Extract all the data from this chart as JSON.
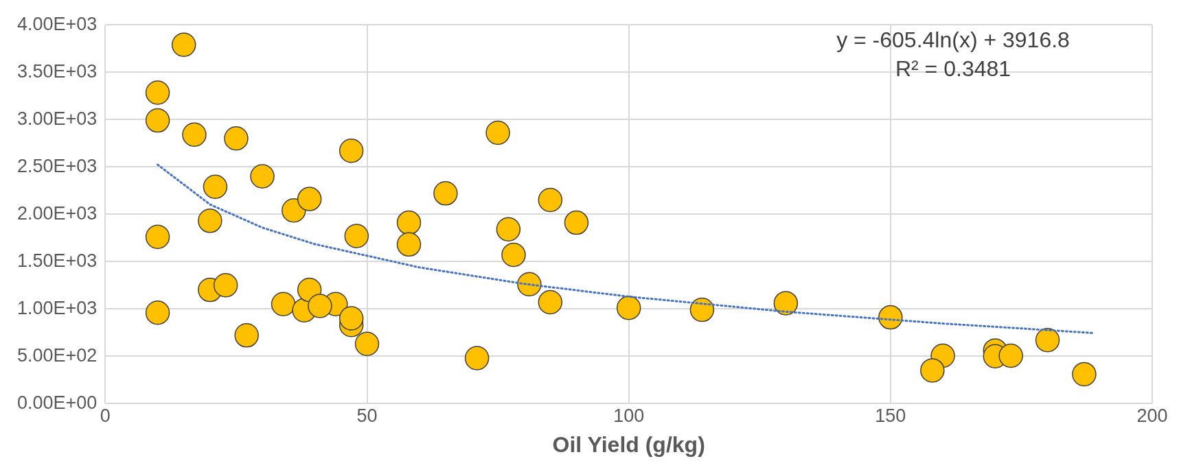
{
  "chart_data": {
    "type": "scatter",
    "xlabel": "Oil Yield (g/kg)",
    "xlim": [
      0,
      200
    ],
    "xticks": [
      0,
      50,
      100,
      150,
      200
    ],
    "ylim": [
      0,
      4000
    ],
    "yticks": [
      {
        "value": 0,
        "label": "0.00E+00"
      },
      {
        "value": 500,
        "label": "5.00E+02"
      },
      {
        "value": 1000,
        "label": "1.00E+03"
      },
      {
        "value": 1500,
        "label": "1.50E+03"
      },
      {
        "value": 2000,
        "label": "2.00E+03"
      },
      {
        "value": 2500,
        "label": "2.50E+03"
      },
      {
        "value": 3000,
        "label": "3.00E+03"
      },
      {
        "value": 3500,
        "label": "3.50E+03"
      },
      {
        "value": 4000,
        "label": "4.00E+03"
      }
    ],
    "grid": true,
    "legend": false,
    "marker": "circle",
    "annotations": [
      "y = -605.4ln(x) + 3916.8",
      "R² = 0.3481"
    ],
    "series": [
      {
        "type": "scatter",
        "color": "#ffc000",
        "x": [
          15,
          10,
          10,
          10,
          10,
          17,
          25,
          21,
          20,
          20,
          23,
          27,
          30,
          36,
          39,
          34,
          38,
          39,
          44,
          41,
          47,
          48,
          47,
          47,
          50,
          58,
          58,
          65,
          71,
          75,
          77,
          78,
          81,
          85,
          85,
          90,
          100,
          114,
          130,
          150,
          160,
          158,
          170,
          170,
          173,
          180,
          187
        ],
        "values": [
          3790,
          3284,
          2990,
          1760,
          960,
          2840,
          2800,
          2290,
          1930,
          1200,
          1250,
          720,
          2400,
          2040,
          2160,
          1050,
          985,
          1200,
          1050,
          1030,
          2670,
          1770,
          830,
          900,
          630,
          1910,
          1680,
          2220,
          480,
          2860,
          1840,
          1570,
          1260,
          2150,
          1070,
          1910,
          1010,
          990,
          1060,
          910,
          505,
          350,
          560,
          500,
          505,
          670,
          310
        ]
      },
      {
        "type": "line",
        "color": "#4472c4",
        "line_style": "dotted",
        "marker": "none",
        "x": [
          10,
          20,
          30,
          40,
          60,
          80,
          100,
          130,
          160,
          189
        ],
        "values": [
          2523,
          2103,
          1858,
          1684,
          1438,
          1264,
          1129,
          970,
          845,
          744
        ]
      }
    ]
  }
}
